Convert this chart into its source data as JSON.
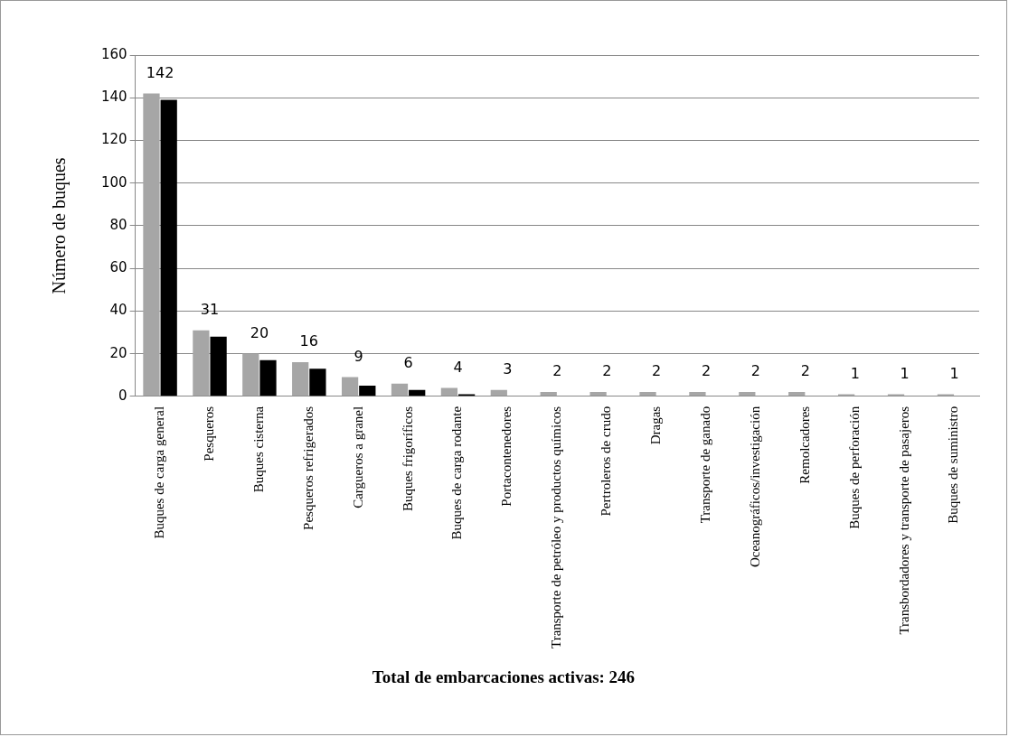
{
  "chart_data": {
    "type": "bar",
    "ylabel": "Número de buques",
    "annotations": [
      "Total de embarcaciones activas: 246"
    ],
    "categories": [
      "Buques de carga general",
      "Pesqueros",
      "Buques cisterna",
      "Pesqueros refrigerados",
      "Cargueros a granel",
      "Buques frigoríficos",
      "Buques de carga rodante",
      "Portacontenedores",
      "Transporte de petróleo y productos químicos",
      "Pertroleros de crudo",
      "Dragas",
      "Transporte de ganado",
      "Oceanográficos/investigación",
      "Remolcadores",
      "Buques de perforación",
      "Transbordadores y transporte de pasajeros",
      "Buques de suministro"
    ],
    "series": [
      {
        "color": "#a6a6a6",
        "values": [
          142,
          31,
          20,
          16,
          9,
          6,
          4,
          3,
          2,
          2,
          2,
          2,
          2,
          2,
          1,
          1,
          1
        ],
        "value_labels": [
          "142",
          "31",
          "20",
          "16",
          "9",
          "6",
          "4",
          "3",
          "2",
          "2",
          "2",
          "2",
          "2",
          "2",
          "1",
          "1",
          "1"
        ]
      },
      {
        "color": "#000000",
        "values": [
          139,
          28,
          17,
          13,
          5,
          3,
          1,
          0,
          0,
          0,
          0,
          0,
          0,
          0,
          0,
          0,
          0
        ]
      }
    ],
    "ylim": [
      0,
      160
    ],
    "yticks": [
      0,
      20,
      40,
      60,
      80,
      100,
      120,
      140,
      160
    ],
    "grid": "y",
    "legend": false
  }
}
